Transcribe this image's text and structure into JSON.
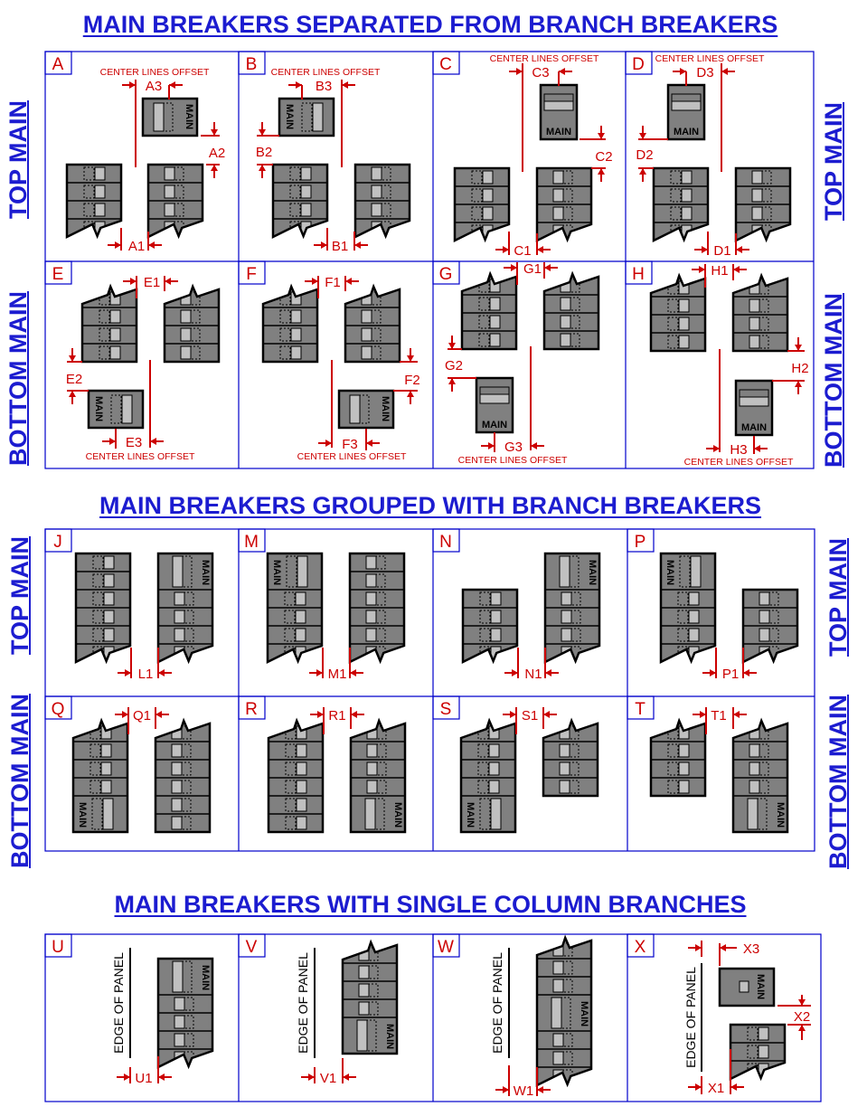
{
  "titles": [
    "MAIN BREAKERS SEPARATED FROM BRANCH BREAKERS",
    "MAIN BREAKERS GROUPED WITH BRANCH BREAKERS",
    "MAIN BREAKERS WITH SINGLE COLUMN BRANCHES"
  ],
  "side_labels": {
    "top": "TOP MAIN",
    "bottom": "BOTTOM MAIN"
  },
  "note": "CENTER LINES OFFSET",
  "edge_label": "EDGE OF PANEL",
  "main_label": "MAIN",
  "colors": {
    "title": "#1c1cd0",
    "frame": "#0000cc",
    "dimension": "#cc0000",
    "breaker": "#808080",
    "handle": "#c0c0c0"
  },
  "cells": [
    {
      "letter": "A",
      "dims": [
        "A1",
        "A2",
        "A3"
      ]
    },
    {
      "letter": "B",
      "dims": [
        "B1",
        "B2",
        "B3"
      ]
    },
    {
      "letter": "C",
      "dims": [
        "C1",
        "C2",
        "C3"
      ]
    },
    {
      "letter": "D",
      "dims": [
        "D1",
        "D2",
        "D3"
      ]
    },
    {
      "letter": "E",
      "dims": [
        "E1",
        "E2",
        "E3"
      ]
    },
    {
      "letter": "F",
      "dims": [
        "F1",
        "F2",
        "F3"
      ]
    },
    {
      "letter": "G",
      "dims": [
        "G1",
        "G2",
        "G3"
      ]
    },
    {
      "letter": "H",
      "dims": [
        "H1",
        "H2",
        "H3"
      ]
    },
    {
      "letter": "J",
      "dims": [
        "L1"
      ]
    },
    {
      "letter": "M",
      "dims": [
        "M1"
      ]
    },
    {
      "letter": "N",
      "dims": [
        "N1"
      ]
    },
    {
      "letter": "P",
      "dims": [
        "P1"
      ]
    },
    {
      "letter": "Q",
      "dims": [
        "Q1"
      ]
    },
    {
      "letter": "R",
      "dims": [
        "R1"
      ]
    },
    {
      "letter": "S",
      "dims": [
        "S1"
      ]
    },
    {
      "letter": "T",
      "dims": [
        "T1"
      ]
    },
    {
      "letter": "U",
      "dims": [
        "U1"
      ]
    },
    {
      "letter": "V",
      "dims": [
        "V1"
      ]
    },
    {
      "letter": "W",
      "dims": [
        "W1"
      ]
    },
    {
      "letter": "X",
      "dims": [
        "X1",
        "X2",
        "X3"
      ]
    }
  ]
}
